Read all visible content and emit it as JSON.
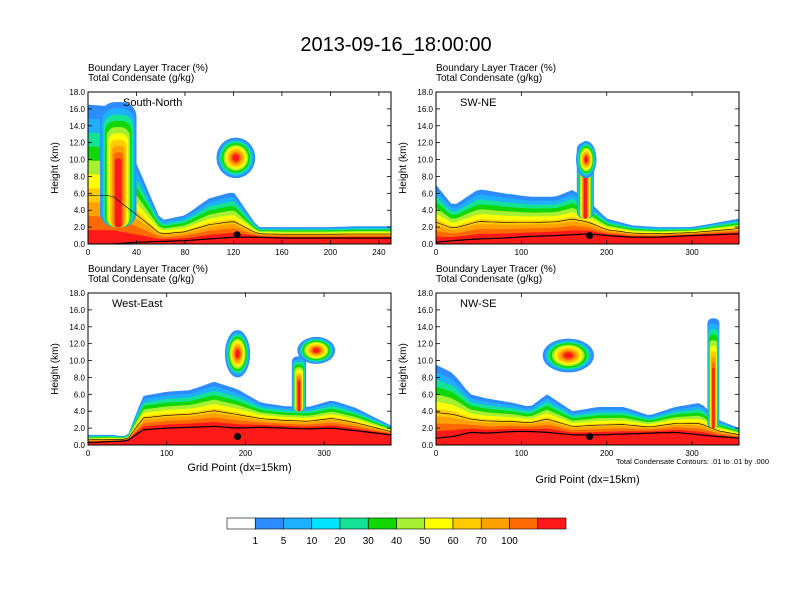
{
  "figure": {
    "title": "2013-09-16_18:00:00",
    "contour_note": "Total Condensate Contours: .01 to .01 by .000"
  },
  "colorbar": {
    "levels": [
      "1",
      "5",
      "10",
      "20",
      "30",
      "40",
      "50",
      "60",
      "70",
      "100"
    ],
    "colors": [
      "#ffffff",
      "#2d8cff",
      "#1fb0ff",
      "#00e5ff",
      "#12e394",
      "#12d600",
      "#a6f033",
      "#ffff00",
      "#ffcc00",
      "#ffa200",
      "#ff6a00",
      "#ff1a1a"
    ]
  },
  "chart_data": [
    {
      "type": "heatmap",
      "title": "",
      "header_line1": "Boundary Layer Tracer   (%)",
      "header_line2": "Total Condensate   (g/kg)",
      "panel_label": "South-North",
      "xlabel": "",
      "ylabel": "Height (km)",
      "xlim": [
        0,
        250
      ],
      "ylim": [
        0,
        18
      ],
      "xticks": [
        "0",
        "40",
        "80",
        "120",
        "160",
        "200",
        "240"
      ],
      "yticks": [
        "0.0",
        "2.0",
        "4.0",
        "6.0",
        "8.0",
        "10.0",
        "12.0",
        "14.0",
        "16.0",
        "18.0"
      ],
      "marker_point": [
        123,
        1.1
      ],
      "layer": {
        "x": [
          0,
          20,
          40,
          60,
          80,
          100,
          120,
          140,
          160,
          180,
          200,
          220,
          250
        ],
        "top": [
          16.5,
          16.3,
          9.5,
          2.8,
          3.4,
          5.4,
          6.2,
          2.0,
          2.0,
          2.0,
          2.0,
          2.1,
          2.1
        ],
        "ground": [
          0.0,
          0.0,
          0.2,
          0.3,
          0.4,
          0.6,
          0.8,
          0.8,
          0.7,
          0.7,
          0.7,
          0.7,
          0.7
        ]
      },
      "plumes": [
        {
          "x": 25,
          "y_bottom": 2,
          "y_top": 16.8,
          "width": 30
        },
        {
          "x": 122,
          "y": 10.2,
          "rx": 16,
          "ry": 2.4
        }
      ]
    },
    {
      "type": "heatmap",
      "title": "",
      "header_line1": "Boundary Layer Tracer   (%)",
      "header_line2": "Total Condensate   (g/kg)",
      "panel_label": "SW-NE",
      "xlabel": "",
      "ylabel": "Height (km)",
      "xlim": [
        0,
        355
      ],
      "ylim": [
        0,
        18
      ],
      "xticks": [
        "0",
        "100",
        "200",
        "300"
      ],
      "yticks": [
        "0.0",
        "2.0",
        "4.0",
        "6.0",
        "8.0",
        "10.0",
        "12.0",
        "14.0",
        "16.0",
        "18.0"
      ],
      "marker_point": [
        180,
        1.0
      ],
      "layer": {
        "x": [
          0,
          20,
          50,
          80,
          110,
          140,
          160,
          180,
          200,
          230,
          260,
          300,
          355
        ],
        "top": [
          7.0,
          4.5,
          6.5,
          6.0,
          5.6,
          5.6,
          6.4,
          5.0,
          3.0,
          2.2,
          2.0,
          2.0,
          3.0
        ],
        "ground": [
          0.2,
          0.4,
          0.6,
          0.7,
          0.9,
          1.0,
          1.1,
          1.2,
          1.0,
          0.8,
          0.8,
          1.0,
          1.2
        ]
      },
      "plumes": [
        {
          "x": 175,
          "y_bottom": 3,
          "y_top": 12,
          "width": 20
        },
        {
          "x": 176,
          "y": 10.0,
          "rx": 12,
          "ry": 2.2
        }
      ]
    },
    {
      "type": "heatmap",
      "title": "",
      "header_line1": "Boundary Layer Tracer   (%)",
      "header_line2": "Total Condensate   (g/kg)",
      "panel_label": "West-East",
      "xlabel": "Grid Point (dx=15km)",
      "ylabel": "Height (km)",
      "xlim": [
        0,
        385
      ],
      "ylim": [
        0,
        18
      ],
      "xticks": [
        "0",
        "100",
        "200",
        "300"
      ],
      "yticks": [
        "0.0",
        "2.0",
        "4.0",
        "6.0",
        "8.0",
        "10.0",
        "12.0",
        "14.0",
        "16.0",
        "18.0"
      ],
      "marker_point": [
        190,
        1.0
      ],
      "layer": {
        "x": [
          0,
          30,
          50,
          70,
          100,
          130,
          160,
          190,
          220,
          250,
          280,
          310,
          340,
          385
        ],
        "top": [
          1.2,
          1.2,
          1.0,
          5.8,
          6.3,
          6.5,
          7.5,
          6.6,
          5.0,
          4.6,
          4.5,
          5.3,
          4.4,
          2.3
        ],
        "ground": [
          0.3,
          0.4,
          0.5,
          1.8,
          2.0,
          2.1,
          2.2,
          2.0,
          2.1,
          2.0,
          1.9,
          2.0,
          1.7,
          1.2
        ]
      },
      "plumes": [
        {
          "x": 190,
          "y": 10.8,
          "rx": 16,
          "ry": 2.8
        },
        {
          "x": 290,
          "y": 11.2,
          "rx": 24,
          "ry": 1.6
        },
        {
          "x": 268,
          "y_bottom": 4,
          "y_top": 10.5,
          "width": 18
        }
      ]
    },
    {
      "type": "heatmap",
      "title": "",
      "header_line1": "Boundary Layer Tracer   (%)",
      "header_line2": "Total Condensate   (g/kg)",
      "panel_label": "NW-SE",
      "xlabel": "Grid Point (dx=15km)",
      "ylabel": "Height (km)",
      "xlim": [
        0,
        355
      ],
      "ylim": [
        0,
        18
      ],
      "xticks": [
        "0",
        "100",
        "200",
        "300"
      ],
      "yticks": [
        "0.0",
        "2.0",
        "4.0",
        "6.0",
        "8.0",
        "10.0",
        "12.0",
        "14.0",
        "16.0",
        "18.0"
      ],
      "marker_point": [
        180,
        1.0
      ],
      "layer": {
        "x": [
          0,
          20,
          40,
          60,
          90,
          110,
          130,
          160,
          190,
          220,
          250,
          280,
          310,
          330,
          355
        ],
        "top": [
          9.5,
          8.5,
          6.0,
          5.5,
          5.0,
          4.5,
          6.0,
          4.0,
          4.5,
          4.5,
          3.5,
          4.5,
          5.0,
          3.0,
          2.0
        ],
        "ground": [
          0.8,
          1.0,
          1.5,
          1.4,
          1.6,
          1.6,
          1.5,
          1.2,
          1.2,
          1.3,
          1.4,
          1.5,
          1.2,
          1.0,
          0.8
        ]
      },
      "plumes": [
        {
          "x": 155,
          "y": 10.6,
          "rx": 30,
          "ry": 2.0
        },
        {
          "x": 325,
          "y_bottom": 2,
          "y_top": 15.0,
          "width": 14
        }
      ]
    }
  ]
}
